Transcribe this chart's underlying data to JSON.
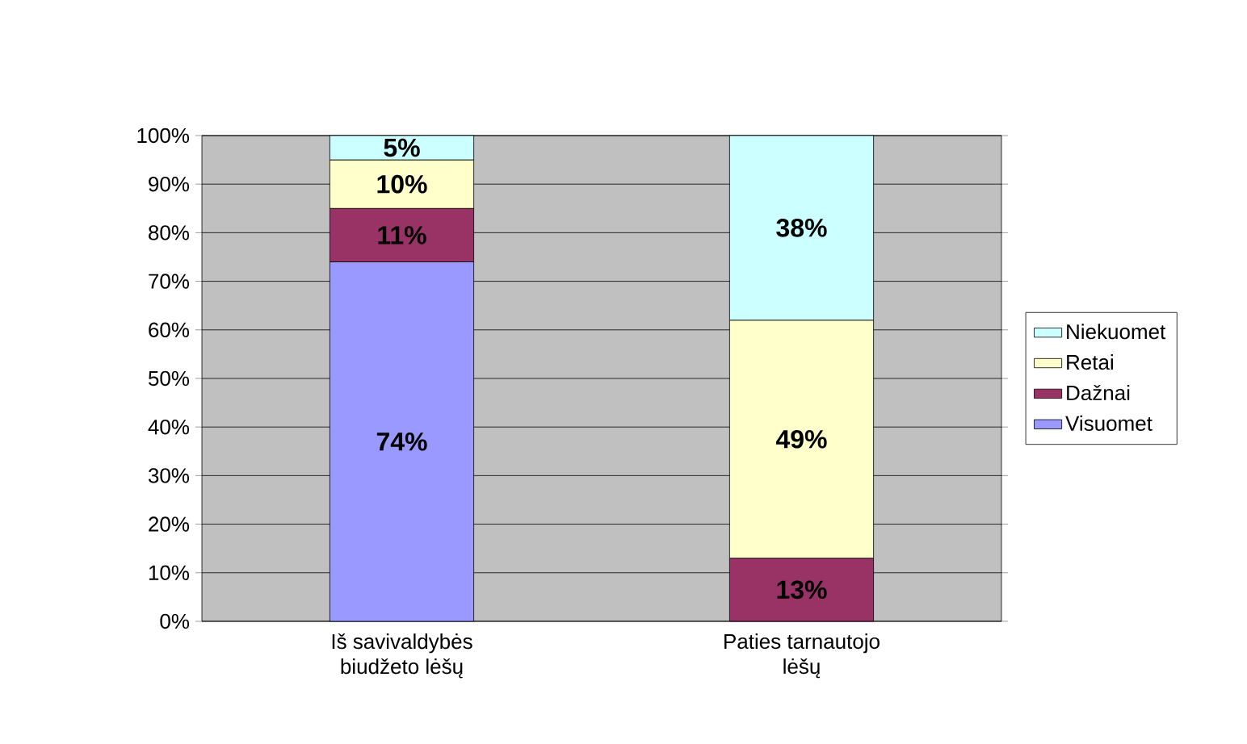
{
  "chart_data": {
    "type": "bar",
    "stacked": true,
    "categories": [
      "Iš savivaldybės biudžeto lėšų",
      "Paties tarnautojo lėšų"
    ],
    "series": [
      {
        "name": "Visuomet",
        "color": "#9999ff",
        "values": [
          74,
          null
        ],
        "value_labels": [
          "74%",
          null
        ]
      },
      {
        "name": "Dažnai",
        "color": "#993366",
        "values": [
          11,
          13
        ],
        "value_labels": [
          "11%",
          "13%"
        ]
      },
      {
        "name": "Retai",
        "color": "#ffffcc",
        "values": [
          10,
          49
        ],
        "value_labels": [
          "10%",
          "49%"
        ]
      },
      {
        "name": "Niekuomet",
        "color": "#ccffff",
        "values": [
          5,
          38
        ],
        "value_labels": [
          "5%",
          "38%"
        ]
      }
    ],
    "ylim": [
      0,
      100
    ],
    "yticks": [
      {
        "value": 0,
        "label": "0%"
      },
      {
        "value": 10,
        "label": "10%"
      },
      {
        "value": 20,
        "label": "20%"
      },
      {
        "value": 30,
        "label": "30%"
      },
      {
        "value": 40,
        "label": "40%"
      },
      {
        "value": 50,
        "label": "50%"
      },
      {
        "value": 60,
        "label": "60%"
      },
      {
        "value": 70,
        "label": "70%"
      },
      {
        "value": 80,
        "label": "80%"
      },
      {
        "value": 90,
        "label": "90%"
      },
      {
        "value": 100,
        "label": "100%"
      }
    ],
    "grid": "y",
    "legend": "right"
  }
}
